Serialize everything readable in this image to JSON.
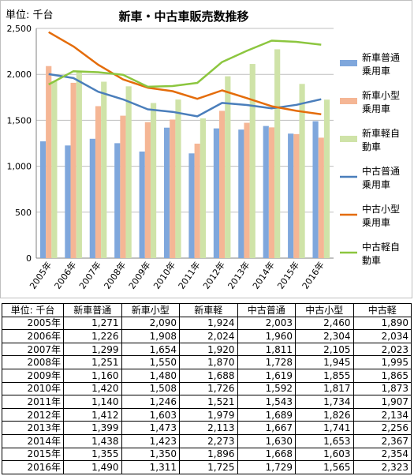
{
  "chart_data": {
    "type": "bar+line",
    "title": "新車・中古車販売数推移",
    "unit_label": "単位: 千台",
    "categories": [
      "2005年",
      "2006年",
      "2007年",
      "2008年",
      "2009年",
      "2010年",
      "2011年",
      "2012年",
      "2013年",
      "2014年",
      "2015年",
      "2016年"
    ],
    "ylim": [
      0,
      2500
    ],
    "yticks": [
      0,
      500,
      1000,
      1500,
      2000,
      2500
    ],
    "ytick_labels": [
      "0",
      "500",
      "1,000",
      "1,500",
      "2,000",
      "2,500"
    ],
    "grid": true,
    "legend_position": "right",
    "series": [
      {
        "name": "新車普通乗用車",
        "legend_lines": [
          "新車普通",
          "乗用車"
        ],
        "kind": "bar",
        "color": "#7fa7dc",
        "values": [
          1271,
          1226,
          1299,
          1251,
          1160,
          1420,
          1140,
          1412,
          1399,
          1438,
          1355,
          1490
        ]
      },
      {
        "name": "新車小型乗用車",
        "legend_lines": [
          "新車小型",
          "乗用車"
        ],
        "kind": "bar",
        "color": "#f5b695",
        "values": [
          2090,
          1908,
          1654,
          1550,
          1480,
          1508,
          1246,
          1603,
          1473,
          1423,
          1350,
          1311
        ]
      },
      {
        "name": "新車軽自動車",
        "legend_lines": [
          "新車軽自",
          "動車"
        ],
        "kind": "bar",
        "color": "#cfe3a8",
        "values": [
          1924,
          2024,
          1920,
          1870,
          1688,
          1726,
          1521,
          1979,
          2113,
          2273,
          1896,
          1725
        ]
      },
      {
        "name": "中古普通乗用車",
        "legend_lines": [
          "中古普通",
          "乗用車"
        ],
        "kind": "line",
        "color": "#4a7ebb",
        "values": [
          2003,
          1960,
          1811,
          1728,
          1619,
          1592,
          1543,
          1689,
          1667,
          1630,
          1668,
          1729
        ]
      },
      {
        "name": "中古小型乗用車",
        "legend_lines": [
          "中古小型",
          "乗用車"
        ],
        "kind": "line",
        "color": "#e46c0a",
        "values": [
          2460,
          2304,
          2105,
          1945,
          1855,
          1817,
          1734,
          1826,
          1741,
          1653,
          1603,
          1565
        ]
      },
      {
        "name": "中古軽自動車",
        "legend_lines": [
          "中古軽自",
          "動車"
        ],
        "kind": "line",
        "color": "#8cc63f",
        "values": [
          1890,
          2034,
          2023,
          1995,
          1865,
          1873,
          1907,
          2134,
          2256,
          2367,
          2354,
          2323
        ]
      }
    ]
  },
  "table": {
    "headers": [
      "単位: 千台",
      "新車普通",
      "新車小型",
      "新車軽",
      "中古普通",
      "中古小型",
      "中古軽"
    ],
    "rows": [
      [
        "2005年",
        "1,271",
        "2,090",
        "1,924",
        "2,003",
        "2,460",
        "1,890"
      ],
      [
        "2006年",
        "1,226",
        "1,908",
        "2,024",
        "1,960",
        "2,304",
        "2,034"
      ],
      [
        "2007年",
        "1,299",
        "1,654",
        "1,920",
        "1,811",
        "2,105",
        "2,023"
      ],
      [
        "2008年",
        "1,251",
        "1,550",
        "1,870",
        "1,728",
        "1,945",
        "1,995"
      ],
      [
        "2009年",
        "1,160",
        "1,480",
        "1,688",
        "1,619",
        "1,855",
        "1,865"
      ],
      [
        "2010年",
        "1,420",
        "1,508",
        "1,726",
        "1,592",
        "1,817",
        "1,873"
      ],
      [
        "2011年",
        "1,140",
        "1,246",
        "1,521",
        "1,543",
        "1,734",
        "1,907"
      ],
      [
        "2012年",
        "1,412",
        "1,603",
        "1,979",
        "1,689",
        "1,826",
        "2,134"
      ],
      [
        "2013年",
        "1,399",
        "1,473",
        "2,113",
        "1,667",
        "1,741",
        "2,256"
      ],
      [
        "2014年",
        "1,438",
        "1,423",
        "2,273",
        "1,630",
        "1,653",
        "2,367"
      ],
      [
        "2015年",
        "1,355",
        "1,350",
        "1,896",
        "1,668",
        "1,603",
        "2,354"
      ],
      [
        "2016年",
        "1,490",
        "1,311",
        "1,725",
        "1,729",
        "1,565",
        "2,323"
      ]
    ]
  }
}
